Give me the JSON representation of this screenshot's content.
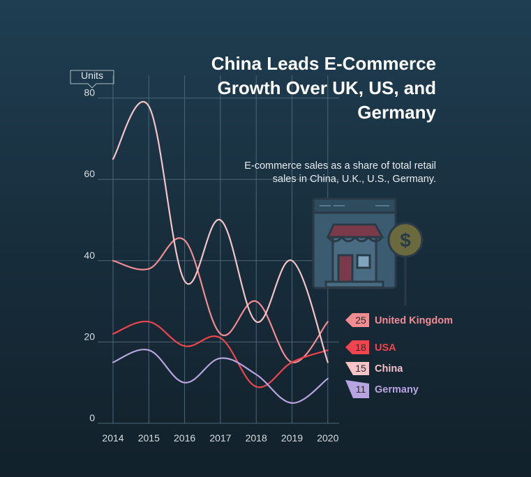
{
  "title": "China Leads E-Commerce Growth Over UK, US, and Germany",
  "subtitle": "E-commerce sales as a share of total retail sales in China, U.K., U.S., Germany.",
  "colors": {
    "background": "#1b3344",
    "grid": "#4c6676",
    "axis_text": "#d9dee2",
    "icon_outline": "#2a3a47",
    "icon_accent": "#a8394a",
    "coin": "#6b6a3e"
  },
  "icons": [
    "online-store-icon",
    "dollar-coin-icon"
  ],
  "chart_data": {
    "type": "line",
    "title": "China Leads E-Commerce Growth Over UK, US, and Germany",
    "subtitle": "E-commerce sales as a share of total retail sales in China, U.K., U.S., Germany.",
    "ylabel": "Units",
    "xlabel": "",
    "x": [
      2014,
      2015,
      2016,
      2017,
      2018,
      2019,
      2020
    ],
    "ylim": [
      0,
      80
    ],
    "yticks": [
      0,
      20,
      40,
      60,
      80
    ],
    "grid": true,
    "smooth": true,
    "legend": "right (end-of-line labels with final values)",
    "series": [
      {
        "name": "United Kingdom",
        "color": "#f28c93",
        "values": [
          40,
          38,
          45,
          22,
          30,
          15,
          25
        ],
        "end_label": "25"
      },
      {
        "name": "USA",
        "color": "#f0454e",
        "values": [
          22,
          25,
          19,
          21,
          9,
          15,
          18
        ],
        "end_label": "18"
      },
      {
        "name": "China",
        "color": "#f6c3c9",
        "values": [
          65,
          78,
          35,
          50,
          25,
          40,
          15
        ],
        "end_label": "15"
      },
      {
        "name": "Germany",
        "color": "#b7a4e0",
        "values": [
          15,
          18,
          10,
          16,
          12,
          5,
          11
        ],
        "end_label": "11"
      }
    ]
  }
}
